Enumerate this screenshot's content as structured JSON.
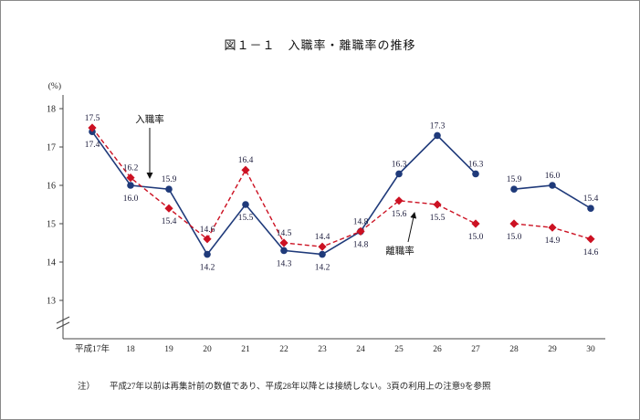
{
  "page": {
    "title": "図１－１　入職率・離職率の推移",
    "note_label": "注）",
    "note_text": "平成27年以前は再集計前の数値であり、平成28年以降とは接続しない。3頁の利用上の注意9を参照"
  },
  "chart_data": {
    "type": "line",
    "title": "図１－１　入職率・離職率の推移",
    "ylabel": "(%)",
    "ylim": [
      13,
      18
    ],
    "yticks": [
      13,
      14,
      15,
      16,
      17,
      18
    ],
    "axis_break": true,
    "grid": false,
    "categories": [
      "平成17年",
      "18",
      "19",
      "20",
      "21",
      "22",
      "23",
      "24",
      "25",
      "26",
      "27",
      "28",
      "29",
      "30"
    ],
    "series": [
      {
        "name": "入職率",
        "style": "solid",
        "marker": "circle",
        "color": "#1f3a7a",
        "values": [
          17.4,
          16.0,
          15.9,
          14.2,
          15.5,
          14.3,
          14.2,
          14.8,
          16.3,
          17.3,
          16.3,
          15.9,
          16.0,
          15.4
        ]
      },
      {
        "name": "離職率",
        "style": "dashed",
        "marker": "diamond",
        "color": "#cc1122",
        "values": [
          17.5,
          16.2,
          15.4,
          14.6,
          16.4,
          14.5,
          14.4,
          14.8,
          15.6,
          15.5,
          15.0,
          15.0,
          14.9,
          14.6
        ]
      }
    ],
    "segments": [
      [
        0,
        10
      ],
      [
        11,
        13
      ]
    ],
    "label_color": "#1c1c3c",
    "axis_color": "#444444",
    "annotation_color": "#111111",
    "note": "平成27年以前は再集計前の数値であり、平成28年以降とは接続しない。3頁の利用上の注意9を参照"
  }
}
